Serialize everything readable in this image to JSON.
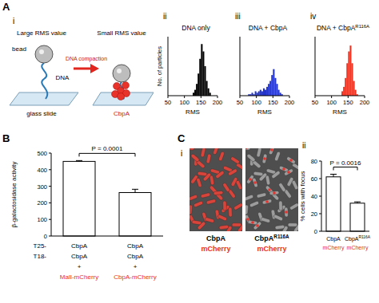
{
  "panel_labels": [
    "A",
    "B",
    "C"
  ],
  "schematic": {
    "panel": "i",
    "large_rms": "Large RMS value",
    "small_rms": "Small RMS value",
    "compaction": "DNA compaction",
    "bead": "bead",
    "dna": "DNA",
    "slide": "glass slide",
    "protein": "CbpA"
  },
  "microscopy": {
    "panel": "i",
    "tag_color": "#e8312a",
    "images": [
      {
        "protein": "CbpA",
        "tag": "mCherry"
      },
      {
        "protein": "CbpA",
        "protein_superscript": "R116A",
        "tag": "mCherry"
      }
    ]
  },
  "chart_data": [
    {
      "type": "histogram",
      "panel": "ii",
      "title": "DNA only",
      "xlabel": "RMS",
      "ylabel": "No. of particles",
      "color": "#000000",
      "bins": [
        50,
        55,
        60,
        65,
        70,
        75,
        80,
        85,
        90,
        95,
        100,
        105,
        110,
        115,
        120,
        125,
        130,
        135,
        140,
        145,
        150,
        155,
        160,
        165,
        170,
        175,
        180,
        185,
        190,
        195,
        200
      ],
      "counts": [
        0,
        0,
        0,
        0,
        0,
        0,
        0,
        0,
        0,
        0,
        0,
        0,
        0,
        0,
        0,
        2,
        4,
        8,
        15,
        25,
        35,
        30,
        20,
        10,
        5,
        2,
        0,
        0,
        0,
        0
      ],
      "xlim": [
        50,
        200
      ],
      "xticks": [
        50,
        100,
        150,
        200
      ],
      "ylim": [
        0,
        40
      ],
      "tick_labels": "x"
    },
    {
      "type": "histogram",
      "panel": "iii",
      "title": "DNA + CbpA",
      "xlabel": "RMS",
      "color": "#2233cc",
      "bins": [
        50,
        55,
        60,
        65,
        70,
        75,
        80,
        85,
        90,
        95,
        100,
        105,
        110,
        115,
        120,
        125,
        130,
        135,
        140,
        145,
        150,
        155,
        160,
        165,
        170,
        175,
        180,
        185,
        190,
        195,
        200
      ],
      "counts": [
        0,
        0,
        0,
        0,
        0,
        1,
        1,
        2,
        1,
        3,
        2,
        3,
        4,
        3,
        5,
        4,
        6,
        8,
        10,
        14,
        18,
        12,
        8,
        4,
        2,
        1,
        0,
        0,
        0,
        0
      ],
      "xlim": [
        50,
        200
      ],
      "xticks": [
        50,
        100,
        150,
        200
      ],
      "ylim": [
        0,
        40
      ],
      "tick_labels": "x"
    },
    {
      "type": "histogram",
      "panel": "iv",
      "title": "DNA + CbpA",
      "title_superscript": "R116A",
      "xlabel": "RMS",
      "color": "#ee3322",
      "bins": [
        50,
        55,
        60,
        65,
        70,
        75,
        80,
        85,
        90,
        95,
        100,
        105,
        110,
        115,
        120,
        125,
        130,
        135,
        140,
        145,
        150,
        155,
        160,
        165,
        170,
        175,
        180,
        185,
        190,
        195,
        200
      ],
      "counts": [
        0,
        0,
        0,
        0,
        0,
        0,
        0,
        0,
        0,
        0,
        0,
        0,
        0,
        0,
        0,
        0,
        3,
        6,
        12,
        22,
        30,
        34,
        22,
        10,
        4,
        1,
        0,
        0,
        0,
        0
      ],
      "xlim": [
        50,
        200
      ],
      "xticks": [
        50,
        100,
        150,
        200
      ],
      "ylim": [
        0,
        40
      ],
      "tick_labels": "x"
    },
    {
      "type": "bar",
      "ylabel": "β-galactosidase activity",
      "categories": [
        null,
        null
      ],
      "values": [
        450,
        262
      ],
      "errors": [
        5,
        20
      ],
      "color": "#ffffff",
      "ylim": [
        0,
        500
      ],
      "yticks": [
        0,
        100,
        200,
        300,
        400,
        500
      ],
      "annotation": "P = 0.0001",
      "x_table": {
        "row_labels": [
          "T25-",
          "T18-"
        ],
        "highlight_color": "#e8312a",
        "columns": [
          {
            "lines": [
              "CbpA",
              "CbpA",
              "+",
              "MalI-mCherry"
            ]
          },
          {
            "lines": [
              "CbpA",
              "CbpA",
              "+",
              "CbpA-mCherry"
            ]
          }
        ]
      }
    },
    {
      "type": "bar",
      "panel": "ii",
      "ylabel": "% cells with focus",
      "categories": [
        null,
        null
      ],
      "values": [
        62,
        32
      ],
      "errors": [
        3,
        1.5
      ],
      "color": "#ffffff",
      "ylim": [
        0,
        80
      ],
      "yticks": [
        0,
        20,
        40,
        60,
        80
      ],
      "annotation": "P = 0.0016",
      "x_table": {
        "highlight_color": "#e8312a",
        "columns": [
          {
            "lines": [
              "CbpA",
              "mCherry"
            ]
          },
          {
            "lines": [
              "CbpA",
              "mCherry"
            ],
            "superscript": "R116A"
          }
        ]
      }
    }
  ]
}
